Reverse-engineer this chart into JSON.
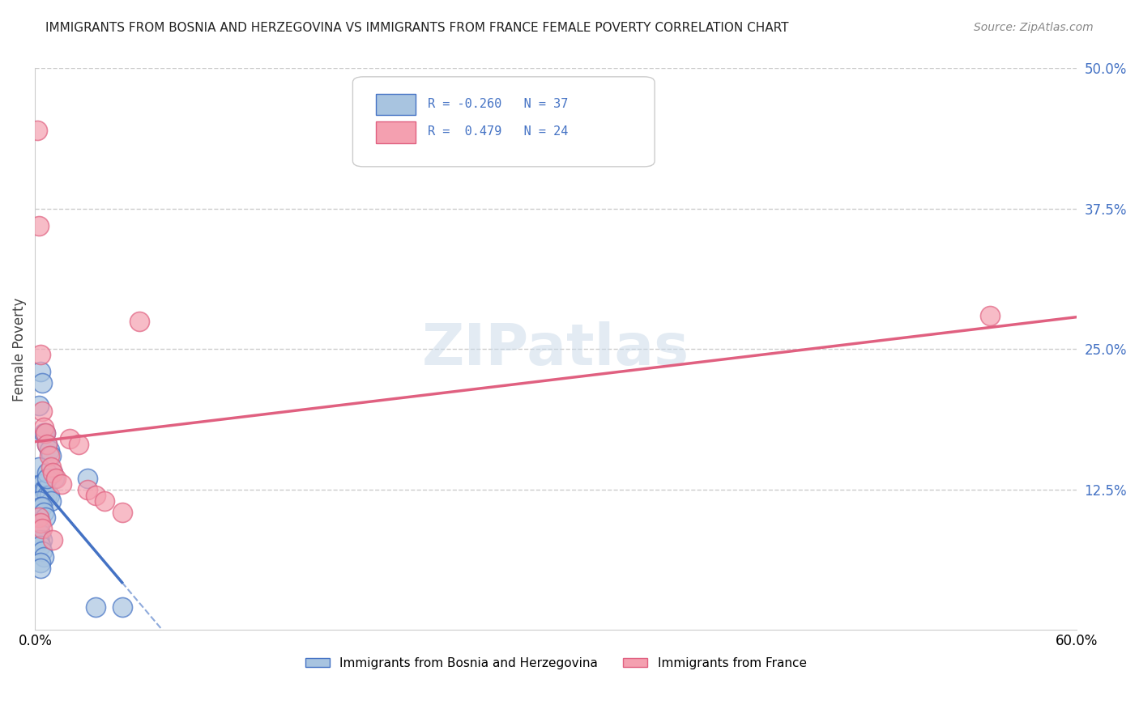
{
  "title": "IMMIGRANTS FROM BOSNIA AND HERZEGOVINA VS IMMIGRANTS FROM FRANCE FEMALE POVERTY CORRELATION CHART",
  "source": "Source: ZipAtlas.com",
  "ylabel": "Female Poverty",
  "xlim": [
    0.0,
    0.6
  ],
  "ylim": [
    0.0,
    0.5
  ],
  "ytick_positions": [
    0.125,
    0.25,
    0.375,
    0.5
  ],
  "grid_color": "#cccccc",
  "background_color": "#ffffff",
  "color_blue": "#a8c4e0",
  "color_pink": "#f4a0b0",
  "line_blue": "#4472c4",
  "line_pink": "#e06080",
  "title_fontsize": 11,
  "bosnia_x": [
    0.002,
    0.003,
    0.004,
    0.005,
    0.006,
    0.007,
    0.008,
    0.009,
    0.01,
    0.011,
    0.002,
    0.003,
    0.004,
    0.005,
    0.006,
    0.007,
    0.008,
    0.009,
    0.002,
    0.003,
    0.004,
    0.005,
    0.006,
    0.002,
    0.003,
    0.004,
    0.002,
    0.003,
    0.004,
    0.005,
    0.003,
    0.003,
    0.007,
    0.007,
    0.03,
    0.05,
    0.035
  ],
  "bosnia_y": [
    0.2,
    0.23,
    0.22,
    0.175,
    0.175,
    0.165,
    0.16,
    0.155,
    0.14,
    0.135,
    0.145,
    0.13,
    0.13,
    0.125,
    0.125,
    0.12,
    0.12,
    0.115,
    0.115,
    0.11,
    0.11,
    0.105,
    0.1,
    0.09,
    0.085,
    0.08,
    0.08,
    0.075,
    0.07,
    0.065,
    0.06,
    0.055,
    0.14,
    0.135,
    0.135,
    0.02,
    0.02
  ],
  "france_x": [
    0.001,
    0.002,
    0.003,
    0.004,
    0.005,
    0.006,
    0.007,
    0.008,
    0.009,
    0.01,
    0.012,
    0.015,
    0.02,
    0.025,
    0.03,
    0.035,
    0.04,
    0.05,
    0.06,
    0.002,
    0.003,
    0.004,
    0.55,
    0.01
  ],
  "france_y": [
    0.445,
    0.36,
    0.245,
    0.195,
    0.18,
    0.175,
    0.165,
    0.155,
    0.145,
    0.14,
    0.135,
    0.13,
    0.17,
    0.165,
    0.125,
    0.12,
    0.115,
    0.105,
    0.275,
    0.1,
    0.095,
    0.09,
    0.28,
    0.08
  ]
}
